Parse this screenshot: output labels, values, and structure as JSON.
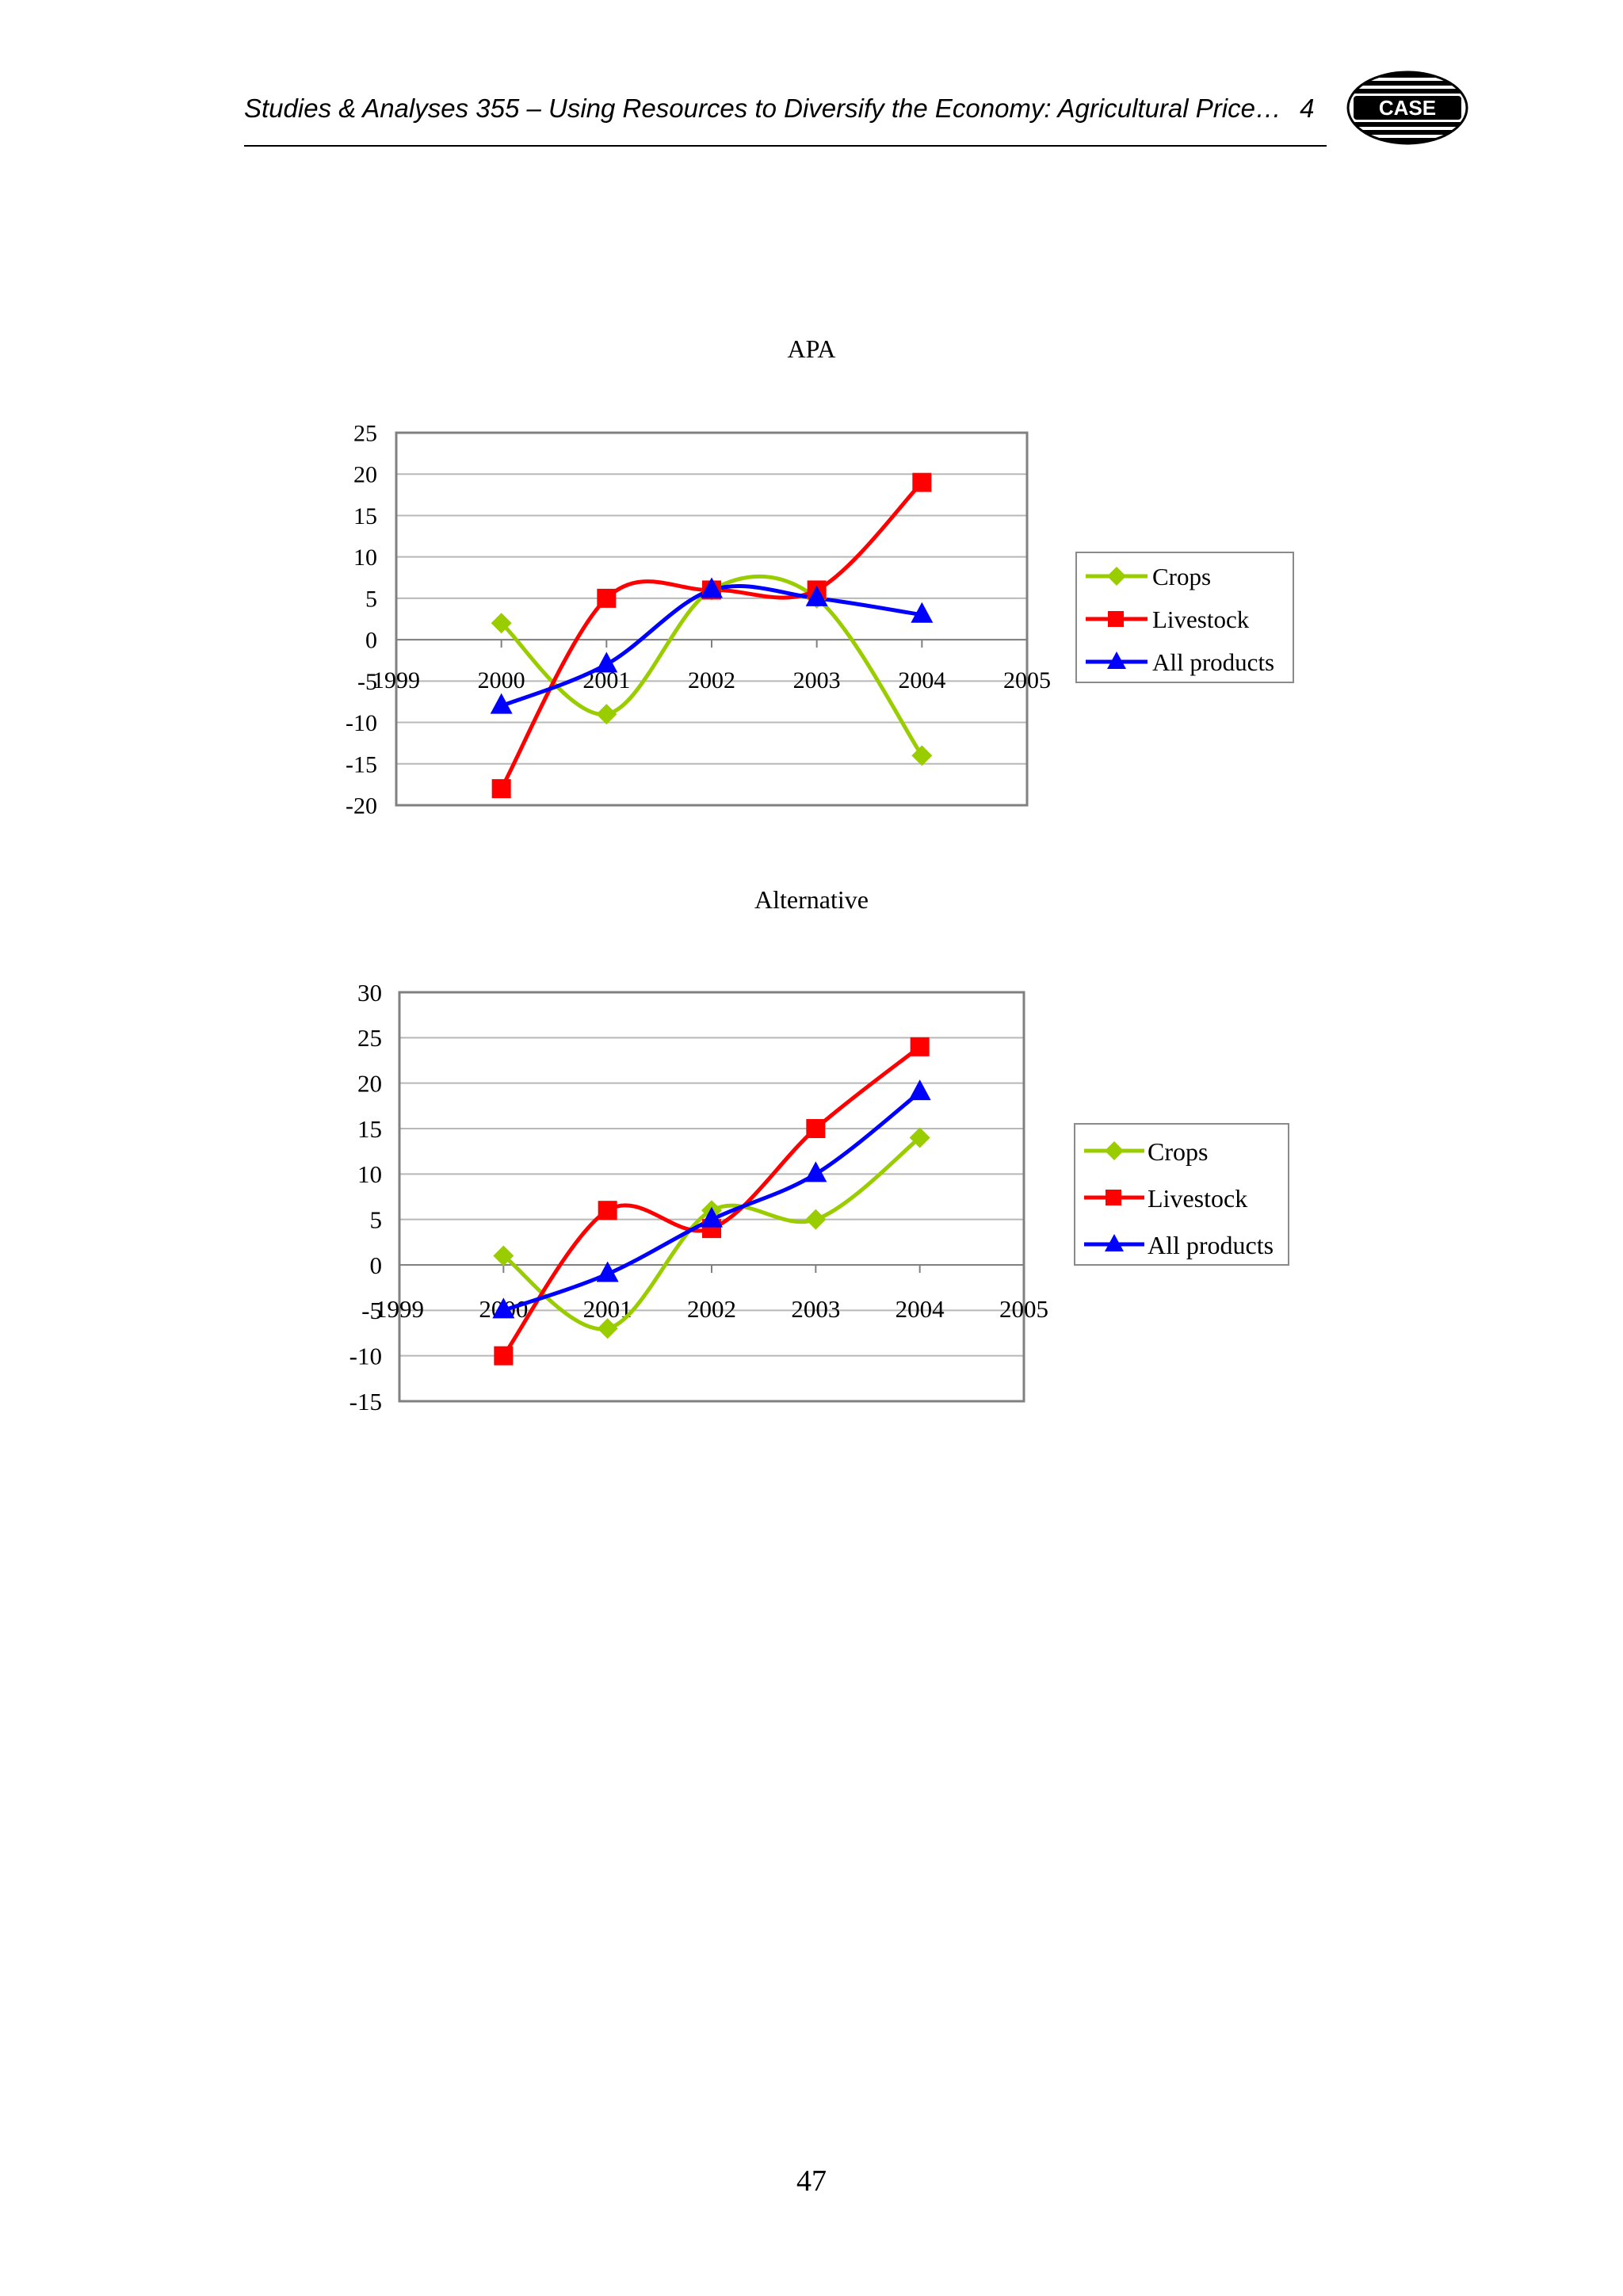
{
  "header": {
    "title": "Studies & Analyses 355 – Using Resources to Diversify the Economy: Agricultural Price…",
    "trailing_char": "4",
    "logo_text": "CASE"
  },
  "page_number": "47",
  "colors": {
    "crops": "#9ACD00",
    "livestock": "#FF0000",
    "all_products": "#0000FF",
    "grid": "#B8B8B8",
    "frame": "#808080"
  },
  "chart_data": [
    {
      "type": "line",
      "title": "APA",
      "x": [
        "2000",
        "2001",
        "2002",
        "2003",
        "2004"
      ],
      "x_tick_labels": [
        "1999",
        "2000",
        "2001",
        "2002",
        "2003",
        "2004",
        "2005"
      ],
      "y_tick_labels": [
        "25",
        "20",
        "15",
        "10",
        "5",
        "0",
        "-5",
        "-10",
        "-15",
        "-20"
      ],
      "ylim": [
        -20,
        25
      ],
      "ystep": 5,
      "grid": true,
      "smoothed": true,
      "legend_position": "right",
      "series": [
        {
          "name": "Crops",
          "marker": "diamond",
          "values": [
            2,
            -9,
            6,
            5,
            -14
          ]
        },
        {
          "name": "Livestock",
          "marker": "square",
          "values": [
            -18,
            5,
            6,
            6,
            19
          ]
        },
        {
          "name": "All products",
          "marker": "triangle",
          "values": [
            -8,
            -3,
            6,
            5,
            3
          ]
        }
      ]
    },
    {
      "type": "line",
      "title": "Alternative",
      "x": [
        "2000",
        "2001",
        "2002",
        "2003",
        "2004"
      ],
      "x_tick_labels": [
        "1999",
        "2000",
        "2001",
        "2002",
        "2003",
        "2004",
        "2005"
      ],
      "y_tick_labels": [
        "30",
        "25",
        "20",
        "15",
        "10",
        "5",
        "0",
        "-5",
        "-10",
        "-15"
      ],
      "ylim": [
        -15,
        30
      ],
      "ystep": 5,
      "grid": true,
      "smoothed": true,
      "legend_position": "right",
      "series": [
        {
          "name": "Crops",
          "marker": "diamond",
          "values": [
            1,
            -7,
            6,
            5,
            14
          ]
        },
        {
          "name": "Livestock",
          "marker": "square",
          "values": [
            -10,
            6,
            4,
            15,
            24
          ]
        },
        {
          "name": "All products",
          "marker": "triangle",
          "values": [
            -5,
            -1,
            5,
            10,
            19
          ]
        }
      ]
    }
  ]
}
